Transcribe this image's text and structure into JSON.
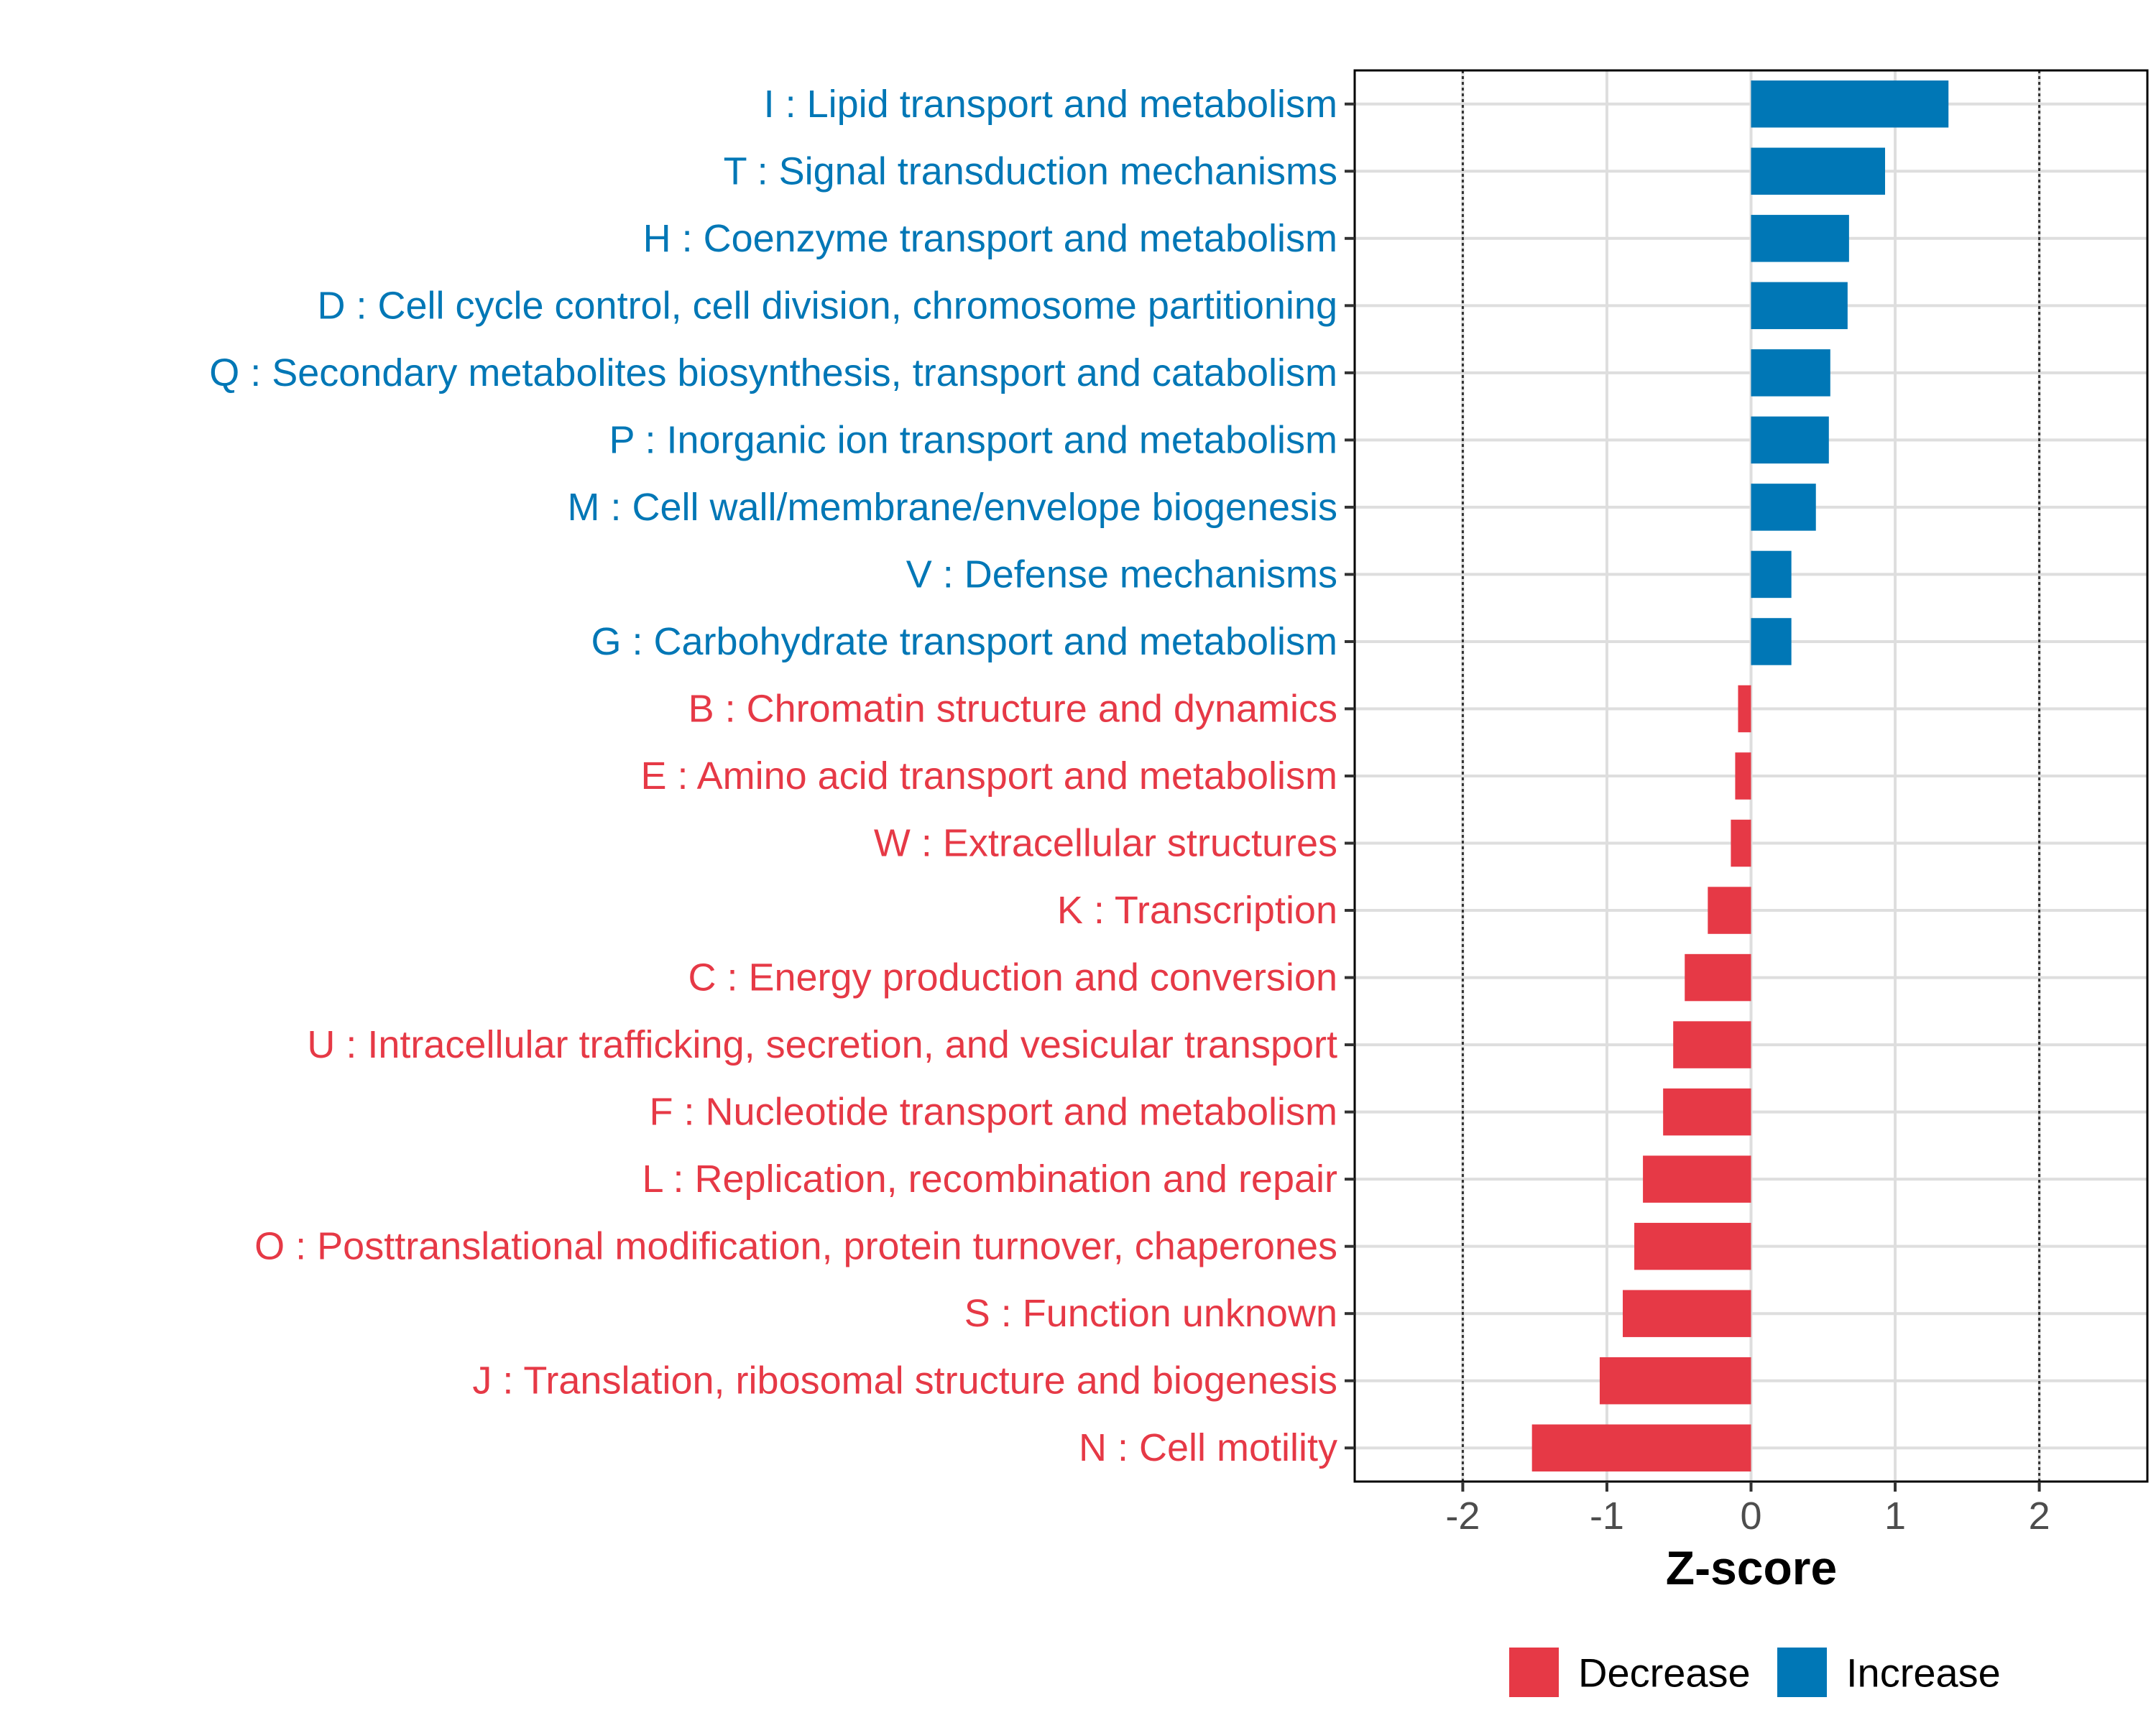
{
  "chart_data": {
    "type": "bar",
    "orientation": "horizontal",
    "title": "",
    "xlabel": "Z-score",
    "ylabel": "",
    "xlim": [
      -2.75,
      2.75
    ],
    "xticks": [
      -2,
      -1,
      0,
      1,
      2
    ],
    "xtick_labels": [
      "-2",
      "-1",
      "0",
      "1",
      "2"
    ],
    "reference_lines": [
      -2,
      2
    ],
    "grid": true,
    "colors": {
      "Decrease": "#E63946",
      "Increase": "#0077B6"
    },
    "legend": {
      "position": "bottom",
      "entries": [
        {
          "label": "Decrease",
          "color": "#E63946"
        },
        {
          "label": "Increase",
          "color": "#0077B6"
        }
      ]
    },
    "categories": [
      "I : Lipid transport and metabolism",
      "T : Signal transduction mechanisms",
      "H : Coenzyme transport and metabolism",
      "D : Cell cycle control, cell division, chromosome partitioning",
      "Q : Secondary metabolites biosynthesis, transport and catabolism",
      "P : Inorganic ion transport and metabolism",
      "M : Cell wall/membrane/envelope biogenesis",
      "V : Defense mechanisms",
      "G : Carbohydrate transport and metabolism",
      "B : Chromatin structure and dynamics",
      "E : Amino acid transport and metabolism",
      "W : Extracellular structures",
      "K : Transcription",
      "C : Energy production and conversion",
      "U : Intracellular trafficking, secretion, and vesicular transport",
      "F : Nucleotide transport and metabolism",
      "L : Replication, recombination and repair",
      "O : Posttranslational modification, protein turnover, chaperones",
      "S : Function unknown",
      "J : Translation, ribosomal structure and biogenesis",
      "N : Cell motility"
    ],
    "values": [
      1.37,
      0.93,
      0.68,
      0.67,
      0.55,
      0.54,
      0.45,
      0.28,
      0.28,
      -0.09,
      -0.11,
      -0.14,
      -0.3,
      -0.46,
      -0.54,
      -0.61,
      -0.75,
      -0.81,
      -0.89,
      -1.05,
      -1.52
    ],
    "groups": [
      "Increase",
      "Increase",
      "Increase",
      "Increase",
      "Increase",
      "Increase",
      "Increase",
      "Increase",
      "Increase",
      "Decrease",
      "Decrease",
      "Decrease",
      "Decrease",
      "Decrease",
      "Decrease",
      "Decrease",
      "Decrease",
      "Decrease",
      "Decrease",
      "Decrease",
      "Decrease"
    ]
  }
}
